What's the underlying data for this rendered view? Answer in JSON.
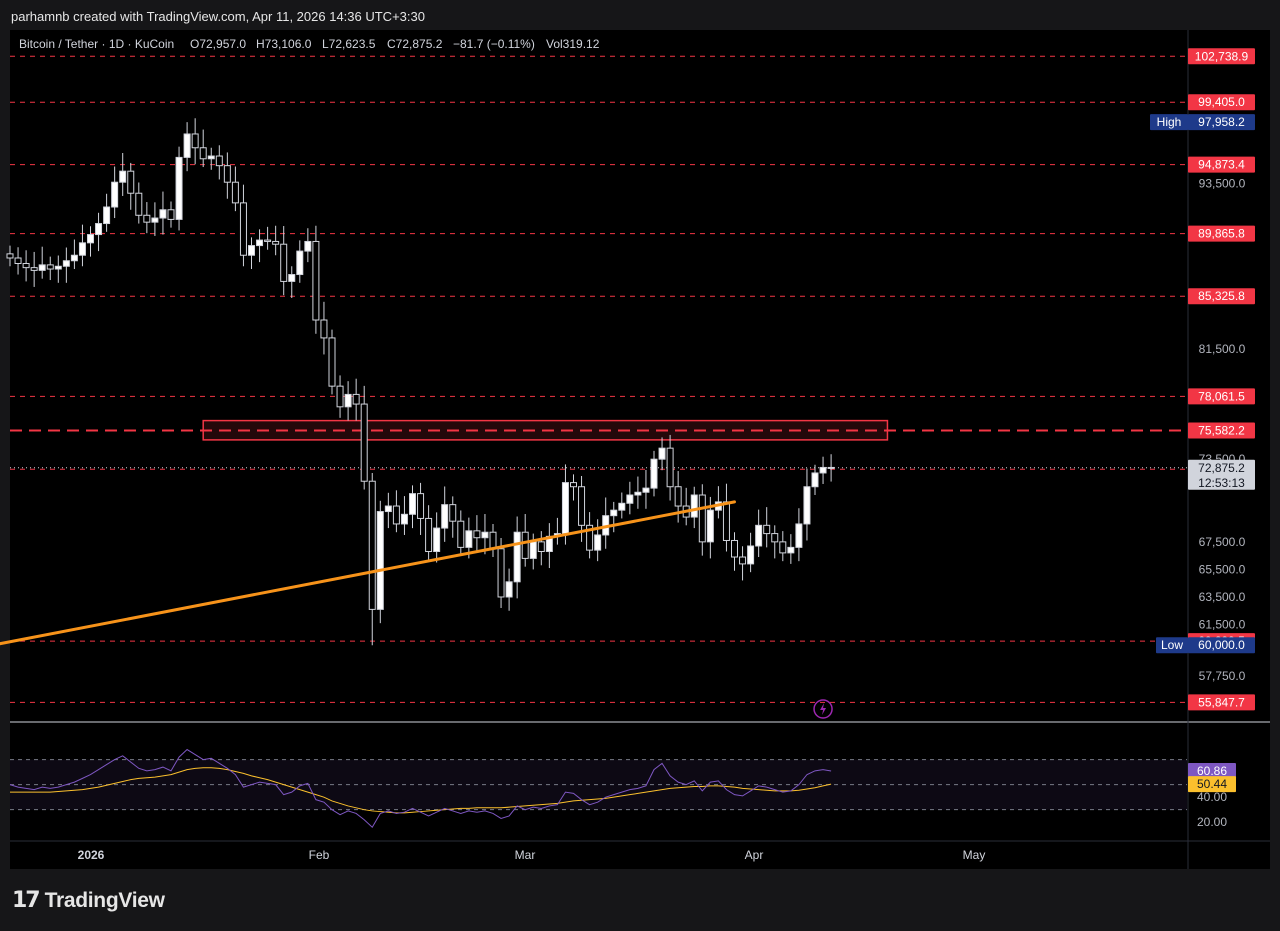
{
  "header": {
    "caption": "parhamnb created with TradingView.com, Apr 11, 2026 14:36 UTC+3:30"
  },
  "footer": {
    "brand_mark": "17",
    "brand_text": "TradingView"
  },
  "legend": {
    "symbol": "Bitcoin / Tether · 1D · KuCoin",
    "open": "O72,957.0",
    "high": "H73,106.0",
    "low": "L72,623.5",
    "close": "C72,875.2",
    "change": "−81.7 (−0.11%)",
    "volume": "Vol319.12"
  },
  "colors": {
    "background": "#000000",
    "level_line": "#f23645",
    "trendline": "#f7931a",
    "up_candle": "#ffffff",
    "rsi_line": "#7e57c2",
    "rsi_ma": "#fbc02d",
    "high_low_badge": "#1e3a8a"
  },
  "chart_data": [
    {
      "type": "candlestick",
      "title": "Bitcoin / Tether · 1D · KuCoin",
      "y_scale": "linear",
      "ylim": [
        54500,
        104500
      ],
      "x_ticks": [
        "2026",
        "Feb",
        "Mar",
        "Apr",
        "May"
      ],
      "y_ticks": [
        "93,500.0",
        "81,500.0",
        "73,500.0",
        "67,500.0",
        "65,500.0",
        "63,500.0",
        "61,500.0",
        "57,750.0"
      ],
      "closes": [
        88100,
        87700,
        87400,
        87200,
        87600,
        87300,
        87500,
        87900,
        88300,
        89200,
        89800,
        90600,
        91800,
        93600,
        94400,
        92800,
        91200,
        90700,
        91000,
        91600,
        90900,
        95400,
        97100,
        96100,
        95300,
        95500,
        94800,
        93600,
        92100,
        88300,
        89000,
        89400,
        89300,
        89100,
        86400,
        86900,
        88600,
        89300,
        83600,
        82300,
        78800,
        77300,
        78200,
        77500,
        71900,
        62600,
        69700,
        70100,
        68800,
        69500,
        71000,
        69200,
        66800,
        68500,
        70200,
        69000,
        67100,
        68300,
        67800,
        68200,
        67000,
        63500,
        64600,
        68200,
        66300,
        67500,
        66800,
        67900,
        68100,
        71800,
        71500,
        68700,
        66900,
        68000,
        69400,
        69800,
        70300,
        70900,
        71100,
        71400,
        73500,
        74300,
        71500,
        70100,
        69300,
        70900,
        67500,
        69800,
        70400,
        67600,
        66400,
        65900,
        67200,
        68700,
        68100,
        67500,
        66700,
        67100,
        68800,
        71500,
        72500,
        72900,
        72875
      ],
      "high": {
        "label": "High",
        "value": "97,958.2"
      },
      "low": {
        "label": "Low",
        "value": "60,000.0"
      },
      "levels": [
        "102,738.9",
        "99,405.0",
        "94,873.4",
        "89,865.8",
        "85,325.8",
        "78,061.5",
        "75,582.2",
        "72,765.6",
        "60,299.5",
        "55,847.7"
      ],
      "last_price": "72,875.2",
      "countdown": "12:53:13",
      "annotations": [
        {
          "type": "resistance-zone",
          "from": 74900,
          "to": 76300
        },
        {
          "type": "trendline",
          "points": [
            [
              -4,
              59800
            ],
            [
              90,
              70400
            ]
          ]
        }
      ]
    },
    {
      "type": "line",
      "title": "RSI",
      "ylim": [
        5,
        100
      ],
      "y_ticks": [
        "40.00",
        "20.00"
      ],
      "bands": [
        70,
        50,
        30
      ],
      "series": [
        {
          "role": "rsi",
          "value_label": "60.86",
          "values": [
            50,
            48,
            47,
            46,
            48,
            47,
            48,
            50,
            52,
            55,
            58,
            62,
            66,
            70,
            73,
            68,
            63,
            61,
            62,
            64,
            61,
            72,
            78,
            74,
            70,
            71,
            67,
            63,
            58,
            48,
            50,
            52,
            51,
            50,
            42,
            44,
            49,
            51,
            38,
            36,
            30,
            26,
            29,
            27,
            22,
            16,
            27,
            29,
            27,
            28,
            31,
            28,
            25,
            28,
            31,
            29,
            27,
            29,
            28,
            29,
            27,
            23,
            25,
            33,
            30,
            32,
            31,
            33,
            34,
            44,
            43,
            38,
            34,
            36,
            40,
            42,
            44,
            46,
            47,
            49,
            62,
            67,
            57,
            52,
            50,
            53,
            45,
            52,
            53,
            46,
            42,
            41,
            45,
            49,
            48,
            46,
            44,
            45,
            50,
            58,
            61,
            62,
            60.86
          ]
        },
        {
          "role": "rsi-ma",
          "value_label": "50.44",
          "values": [
            44,
            44,
            44,
            44,
            44,
            44,
            44.5,
            45,
            45.5,
            46,
            47,
            48,
            49.5,
            51,
            52.5,
            54,
            55,
            55.5,
            56,
            57,
            58,
            60,
            62,
            63,
            63.5,
            63.5,
            63,
            62,
            60.5,
            59,
            57,
            55.5,
            54,
            52,
            50,
            48,
            46,
            44,
            42,
            40,
            37,
            35,
            33,
            31.5,
            30,
            29,
            28.5,
            28,
            27.5,
            27.5,
            28,
            28.5,
            29,
            29.5,
            30,
            30.5,
            31,
            31,
            31.5,
            31.5,
            31.5,
            31.5,
            32,
            32.5,
            33,
            33.5,
            34,
            34.5,
            35,
            36,
            37,
            37.5,
            38,
            38.5,
            39,
            40,
            41,
            42,
            43,
            44,
            45,
            46,
            47,
            47.5,
            48,
            48.5,
            48.5,
            49,
            49,
            48.5,
            48,
            47,
            46.5,
            46,
            45.5,
            45,
            45,
            45,
            45.5,
            46.5,
            47.5,
            49,
            50.44
          ]
        }
      ]
    }
  ]
}
